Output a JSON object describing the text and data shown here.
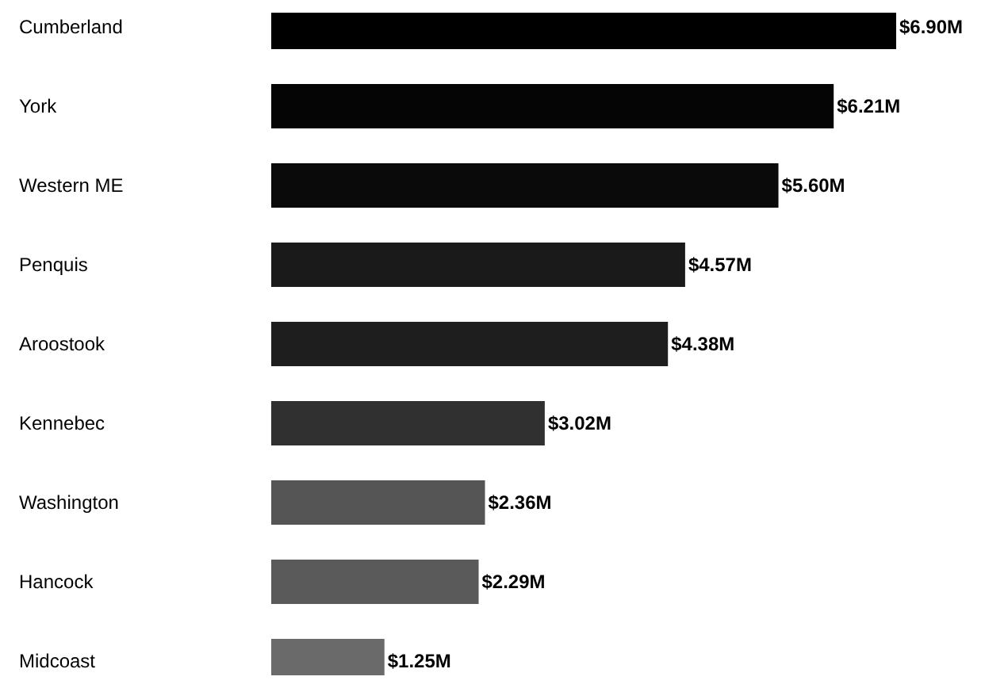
{
  "chart_data": {
    "type": "bar",
    "orientation": "horizontal",
    "categories": [
      "Cumberland",
      "York",
      "Western ME",
      "Penquis",
      "Aroostook",
      "Kennebec",
      "Washington",
      "Hancock",
      "Midcoast"
    ],
    "values": [
      6.9,
      6.21,
      5.6,
      4.57,
      4.38,
      3.02,
      2.36,
      2.29,
      1.25
    ],
    "colors": [
      "#000000",
      "#050505",
      "#0a0a0a",
      "#1a1a1a",
      "#1e1e1e",
      "#303030",
      "#555555",
      "#5a5a5a",
      "#6a6a6a"
    ],
    "value_labels": [
      "$6.90M",
      "$6.21M",
      "$5.60M",
      "$4.57M",
      "$4.38M",
      "$3.02M",
      "$2.36M",
      "$2.29M",
      "$1.25M"
    ]
  }
}
